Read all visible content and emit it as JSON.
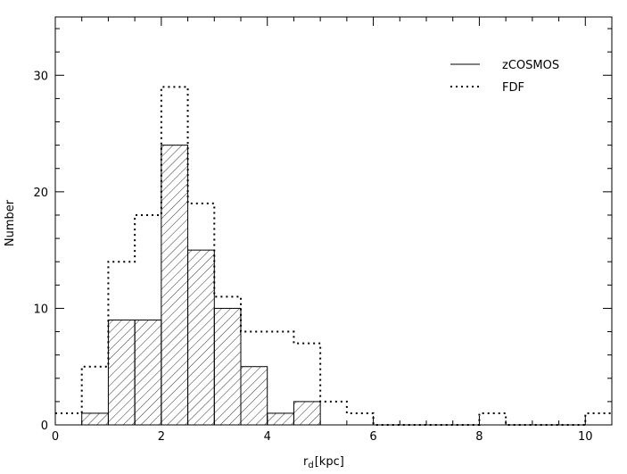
{
  "chart_data": {
    "type": "bar",
    "xlabel": "r",
    "xlabel_sub": "d",
    "xlabel_unit": "[kpc]",
    "ylabel": "Number",
    "xlim": [
      0,
      10.5
    ],
    "ylim": [
      0,
      35
    ],
    "x_ticks": [
      "0",
      "2",
      "4",
      "6",
      "8",
      "10"
    ],
    "y_ticks": [
      "0",
      "10",
      "20",
      "30"
    ],
    "bin_width": 0.5,
    "grid": false,
    "legend_position": "top-right",
    "series": [
      {
        "name": "zCOSMOS",
        "style": "hatched",
        "bin_starts": [
          0.5,
          1.0,
          1.5,
          2.0,
          2.5,
          3.0,
          3.5,
          4.0,
          4.5
        ],
        "values": [
          1,
          9,
          9,
          24,
          15,
          10,
          5,
          1,
          2
        ]
      },
      {
        "name": "FDF",
        "style": "dotted",
        "bin_starts": [
          0.0,
          0.5,
          1.0,
          1.5,
          2.0,
          2.5,
          3.0,
          3.5,
          4.0,
          4.5,
          5.0,
          5.5,
          6.0,
          6.5,
          7.0,
          7.5,
          8.0,
          8.5,
          9.0,
          9.5,
          10.0
        ],
        "values": [
          1,
          5,
          14,
          18,
          29,
          19,
          11,
          8,
          8,
          7,
          2,
          1,
          0,
          0,
          0,
          0,
          1,
          0,
          0,
          0,
          1
        ]
      }
    ]
  }
}
